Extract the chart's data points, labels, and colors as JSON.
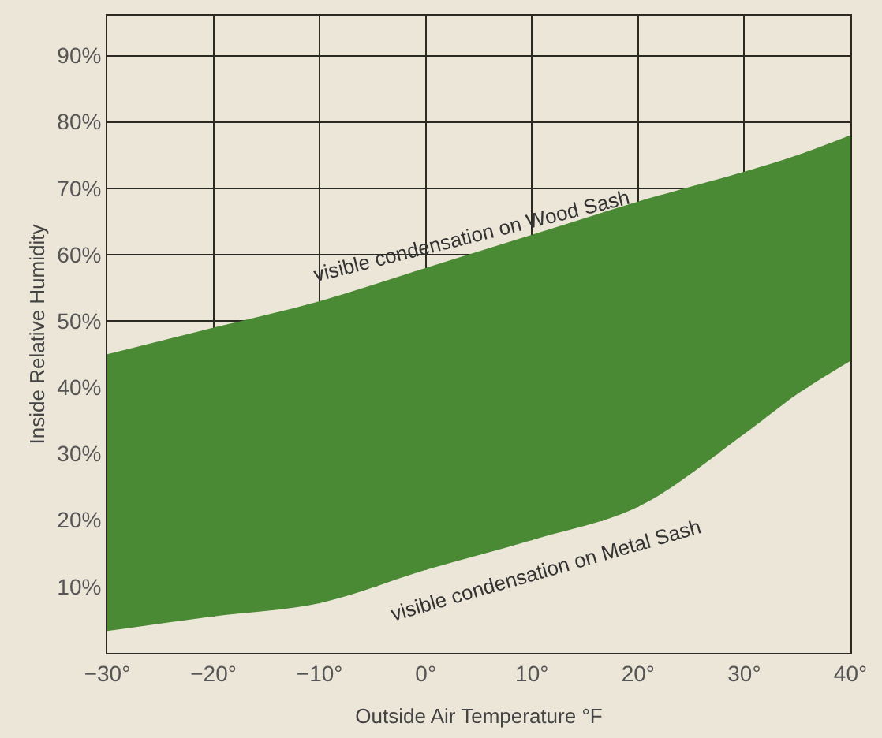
{
  "chart_data": {
    "type": "area",
    "xlabel": "Outside Air Temperature °F",
    "ylabel": "Inside Relative Humidity",
    "x": [
      -30,
      -20,
      -10,
      0,
      10,
      20,
      30,
      35,
      40
    ],
    "series": [
      {
        "color": "#ebe6d8",
        "values": [
          3.3,
          5.5,
          7.5,
          12.5,
          17,
          22,
          33,
          39,
          44
        ]
      },
      {
        "color": "#4b8a34",
        "values": [
          41.7,
          43.5,
          45.5,
          45.5,
          46,
          46,
          39.5,
          36,
          34
        ]
      }
    ],
    "xlim": [
      -30,
      40
    ],
    "ylim": [
      0,
      96
    ],
    "xticks": [
      {
        "value": -30,
        "label": "−30°"
      },
      {
        "value": -20,
        "label": "−20°"
      },
      {
        "value": -10,
        "label": "−10°"
      },
      {
        "value": 0,
        "label": "0°"
      },
      {
        "value": 10,
        "label": "10°"
      },
      {
        "value": 20,
        "label": "20°"
      },
      {
        "value": 30,
        "label": "30°"
      },
      {
        "value": 40,
        "label": "40°"
      }
    ],
    "yticks": [
      {
        "value": 10,
        "label": "10%"
      },
      {
        "value": 20,
        "label": "20%"
      },
      {
        "value": 30,
        "label": "30%"
      },
      {
        "value": 40,
        "label": "40%"
      },
      {
        "value": 50,
        "label": "50%"
      },
      {
        "value": 60,
        "label": "60%"
      },
      {
        "value": 70,
        "label": "70%"
      },
      {
        "value": 80,
        "label": "80%"
      },
      {
        "value": 90,
        "label": "90%"
      }
    ],
    "stacked": true,
    "grid": true,
    "annotations": [
      "visible condensation on Wood Sash",
      "visible condensation on Metal Sash"
    ]
  }
}
